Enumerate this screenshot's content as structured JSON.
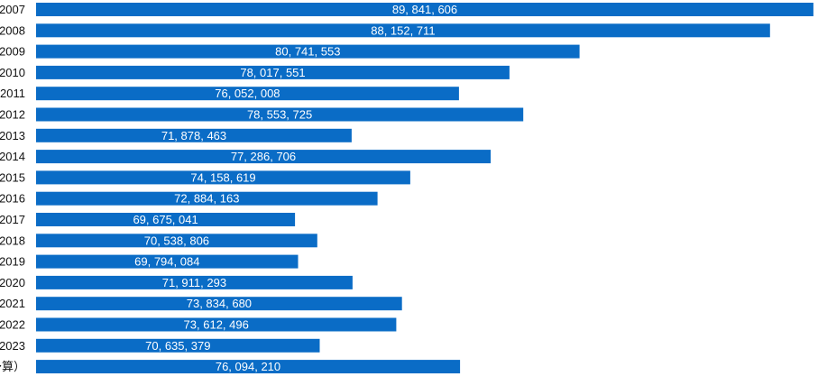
{
  "chart_data": {
    "type": "bar",
    "orientation": "horizontal",
    "categories": [
      "2007",
      "2008",
      "2009",
      "2010",
      "2011",
      "2012",
      "2013",
      "2014",
      "2015",
      "2016",
      "2017",
      "2018",
      "2019",
      "2020",
      "2021",
      "2022",
      "2023",
      "予算）"
    ],
    "values": [
      89841606,
      88152711,
      80741553,
      78017551,
      76052008,
      78553725,
      71878463,
      77286706,
      74158619,
      72884163,
      69675041,
      70538806,
      69794084,
      71911293,
      73834680,
      73612496,
      70635379,
      76094210
    ],
    "value_labels": [
      "89, 841, 606",
      "88, 152, 711",
      "80, 741, 553",
      "78, 017, 551",
      "76, 052, 008",
      "78, 553, 725",
      "71, 878, 463",
      "77, 286, 706",
      "74, 158, 619",
      "72, 884, 163",
      "69, 675, 041",
      "70, 538, 806",
      "69, 794, 084",
      "71, 911, 293",
      "73, 834, 680",
      "73, 612, 496",
      "70, 635, 379",
      "76, 094, 210"
    ],
    "xlim": [
      59600000,
      89950000
    ],
    "bar_color": "#0a6cc6",
    "grid": false,
    "legend": "none"
  }
}
